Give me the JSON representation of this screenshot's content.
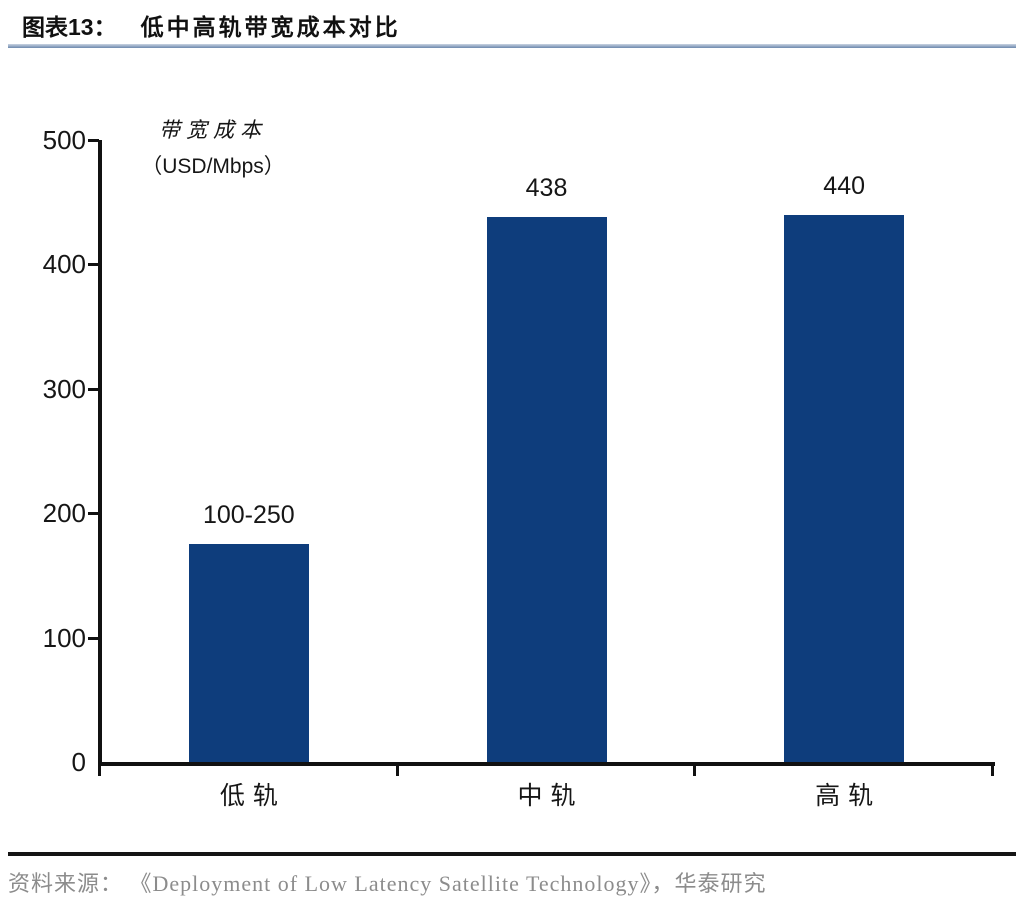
{
  "header": {
    "tag": "图表13：",
    "title": "低中高轨带宽成本对比"
  },
  "chart_data": {
    "type": "bar",
    "categories": [
      "低轨",
      "中轨",
      "高轨"
    ],
    "values": [
      175,
      438,
      440
    ],
    "bar_labels": [
      "100-250",
      "438",
      "440"
    ],
    "title": "低中高轨带宽成本对比",
    "xlabel": "",
    "ylabel": "带宽成本（USD/Mbps）",
    "ylabel_line1": "带宽成本",
    "ylabel_line2": "（USD/Mbps）",
    "yticks": [
      0,
      100,
      200,
      300,
      400,
      500
    ],
    "ylim": [
      0,
      500
    ],
    "grid": false,
    "legend": "none",
    "bar_color": "#0e3d7c"
  },
  "footer": {
    "source": "资料来源： 《Deployment of Low Latency Satellite Technology》，华泰研究"
  }
}
